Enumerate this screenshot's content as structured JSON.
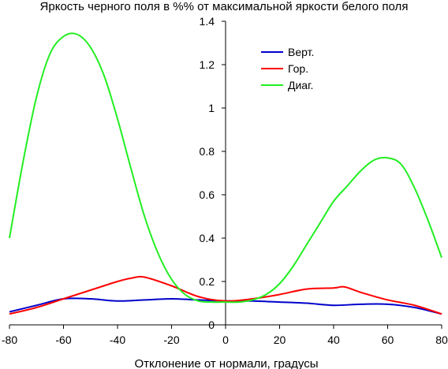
{
  "chart_data": {
    "type": "line",
    "title": "Яркость черного поля в %% от максимальной яркости белого поля",
    "xlabel": "Отклонение от нормали, градусы",
    "ylabel": "",
    "xlim": [
      -80,
      80
    ],
    "ylim": [
      0,
      1.4
    ],
    "xticks": [
      "-80",
      "-60",
      "-40",
      "-20",
      "0",
      "20",
      "40",
      "60",
      "80"
    ],
    "yticks": [
      "0",
      "0.2",
      "0.4",
      "0.6",
      "0.8",
      "1",
      "1.2",
      "1.4"
    ],
    "grid": false,
    "legend_position": "top-center",
    "series": [
      {
        "name": "Верт.",
        "color": "#0000cc",
        "x": [
          -80,
          -70,
          -60,
          -50,
          -40,
          -30,
          -20,
          -10,
          0,
          10,
          20,
          30,
          40,
          50,
          60,
          70,
          80
        ],
        "y": [
          0.06,
          0.09,
          0.12,
          0.12,
          0.11,
          0.115,
          0.12,
          0.115,
          0.11,
          0.11,
          0.105,
          0.1,
          0.09,
          0.095,
          0.095,
          0.08,
          0.05
        ]
      },
      {
        "name": "Гор.",
        "color": "#ff0000",
        "x": [
          -80,
          -70,
          -60,
          -50,
          -40,
          -35,
          -30,
          -20,
          -10,
          0,
          10,
          20,
          30,
          40,
          44,
          50,
          60,
          70,
          80
        ],
        "y": [
          0.05,
          0.08,
          0.12,
          0.16,
          0.2,
          0.215,
          0.22,
          0.18,
          0.13,
          0.11,
          0.12,
          0.14,
          0.165,
          0.17,
          0.175,
          0.15,
          0.115,
          0.09,
          0.05
        ]
      },
      {
        "name": "Диаг.",
        "color": "#22ee22",
        "x": [
          -80,
          -75,
          -70,
          -65,
          -60,
          -55,
          -50,
          -45,
          -40,
          -35,
          -30,
          -25,
          -20,
          -15,
          -10,
          -5,
          0,
          5,
          10,
          15,
          20,
          25,
          30,
          35,
          40,
          45,
          50,
          55,
          60,
          65,
          70,
          75,
          80
        ],
        "y": [
          0.4,
          0.75,
          1.05,
          1.25,
          1.33,
          1.34,
          1.28,
          1.15,
          0.95,
          0.72,
          0.5,
          0.33,
          0.21,
          0.14,
          0.11,
          0.105,
          0.105,
          0.105,
          0.115,
          0.14,
          0.19,
          0.27,
          0.37,
          0.47,
          0.57,
          0.64,
          0.71,
          0.76,
          0.77,
          0.74,
          0.63,
          0.48,
          0.31
        ]
      }
    ]
  }
}
